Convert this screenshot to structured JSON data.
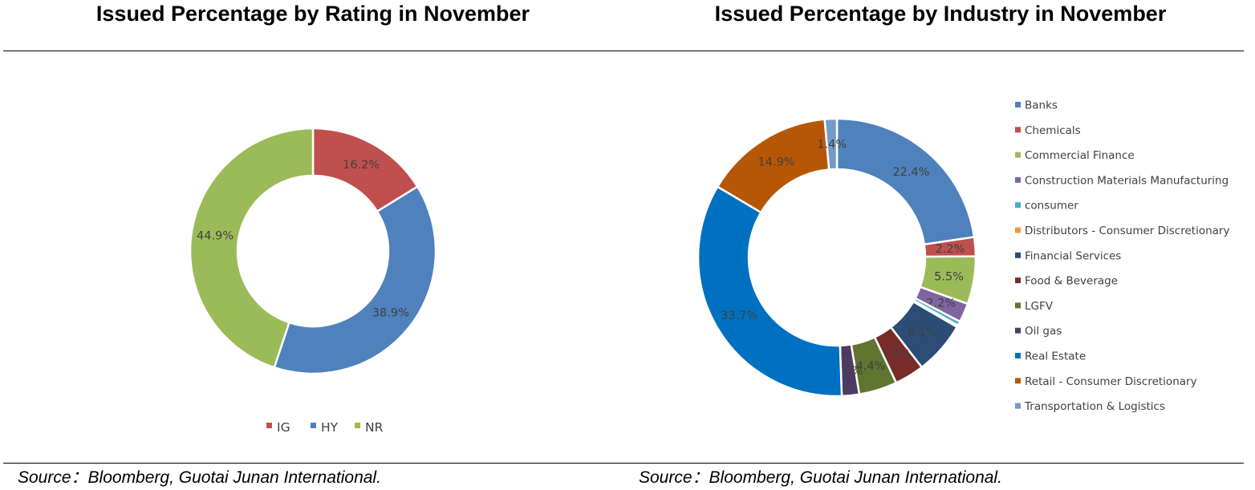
{
  "chart_data": [
    {
      "type": "pie",
      "title": "Issued Percentage by Rating in November",
      "source": "Source：Bloomberg, Guotai Junan International.",
      "legend": "bottom",
      "categories": [
        "IG",
        "HY",
        "NR"
      ],
      "values": [
        16.2,
        38.9,
        44.9
      ],
      "labels": [
        "16.2%",
        "38.9%",
        "44.9%"
      ],
      "colors": [
        "#c0504d",
        "#4f81bd",
        "#9bbb59"
      ]
    },
    {
      "type": "pie",
      "title": "Issued Percentage by Industry in November",
      "source": "Source：Bloomberg, Guotai Junan International.",
      "legend": "right",
      "categories": [
        "Banks",
        "Chemicals",
        "Commercial Finance",
        "Construction Materials Manufacturing",
        "consumer",
        "Distributors - Consumer Discretionary",
        "Financial Services",
        "Food & Beverage",
        "LGFV",
        "Oil gas",
        "Real Estate",
        "Retail - Consumer Discretionary",
        "Transportation & Logistics"
      ],
      "values": [
        22.4,
        2.2,
        5.5,
        2.2,
        0.5,
        0.2,
        6.1,
        3.4,
        4.4,
        2.0,
        33.7,
        14.9,
        1.4
      ],
      "labels": [
        "22.4%",
        "2.2%",
        "5.5%",
        "2.2%",
        "",
        "",
        "6.1%",
        "3.4%",
        "4.4%",
        "2.0%",
        "33.7%",
        "14.9%",
        "1.4%"
      ],
      "colors": [
        "#4f81bd",
        "#c0504d",
        "#9bbb59",
        "#8064a2",
        "#4bacc6",
        "#f79646",
        "#2c4d75",
        "#772c2a",
        "#5f7530",
        "#4d3b62",
        "#0070c0",
        "#b65708",
        "#729aca"
      ]
    }
  ]
}
